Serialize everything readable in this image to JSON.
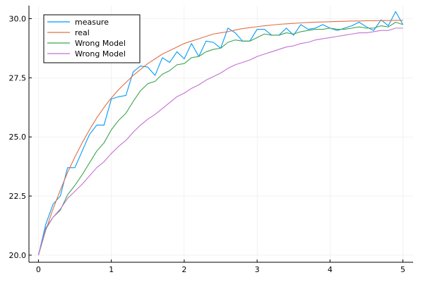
{
  "chart_data": {
    "type": "line",
    "title": "",
    "xlabel": "",
    "ylabel": "",
    "xlim": [
      -0.13,
      5.14
    ],
    "ylim": [
      19.7,
      30.55
    ],
    "xticks": [
      0,
      1,
      2,
      3,
      4,
      5
    ],
    "xtick_labels": [
      "0",
      "1",
      "2",
      "3",
      "4",
      "5"
    ],
    "yticks": [
      20.0,
      22.5,
      25.0,
      27.5,
      30.0
    ],
    "ytick_labels": [
      "20.0",
      "22.5",
      "25.0",
      "27.5",
      "30.0"
    ],
    "grid": true,
    "legend_position": "top-left",
    "x": [
      0.0,
      0.1,
      0.2,
      0.3,
      0.4,
      0.5,
      0.6,
      0.7,
      0.8,
      0.9,
      1.0,
      1.1,
      1.2,
      1.3,
      1.4,
      1.5,
      1.6,
      1.7,
      1.8,
      1.9,
      2.0,
      2.1,
      2.2,
      2.3,
      2.4,
      2.5,
      2.6,
      2.7,
      2.8,
      2.9,
      3.0,
      3.1,
      3.2,
      3.3,
      3.4,
      3.5,
      3.6,
      3.7,
      3.8,
      3.9,
      4.0,
      4.1,
      4.2,
      4.3,
      4.4,
      4.5,
      4.6,
      4.7,
      4.8,
      4.9,
      5.0
    ],
    "series": [
      {
        "name": "measure",
        "color": "#009af9",
        "values": [
          20.0,
          21.3,
          22.15,
          22.5,
          23.7,
          23.7,
          24.4,
          25.1,
          25.5,
          25.5,
          26.6,
          26.7,
          26.75,
          27.75,
          28.0,
          27.95,
          27.6,
          28.35,
          28.15,
          28.6,
          28.3,
          28.95,
          28.4,
          29.05,
          29.0,
          28.75,
          29.6,
          29.4,
          29.05,
          29.05,
          29.55,
          29.55,
          29.3,
          29.3,
          29.6,
          29.3,
          29.75,
          29.55,
          29.6,
          29.75,
          29.6,
          29.5,
          29.6,
          29.7,
          29.85,
          29.65,
          29.5,
          29.95,
          29.7,
          30.3,
          29.75
        ]
      },
      {
        "name": "real",
        "color": "#e26f46",
        "values": [
          20.0,
          21.05,
          21.95,
          22.75,
          23.5,
          24.15,
          24.75,
          25.3,
          25.8,
          26.25,
          26.65,
          27.0,
          27.3,
          27.6,
          27.85,
          28.1,
          28.3,
          28.5,
          28.65,
          28.8,
          28.95,
          29.05,
          29.15,
          29.25,
          29.35,
          29.4,
          29.45,
          29.52,
          29.58,
          29.62,
          29.66,
          29.7,
          29.73,
          29.76,
          29.78,
          29.8,
          29.82,
          29.84,
          29.85,
          29.86,
          29.87,
          29.88,
          29.89,
          29.9,
          29.9,
          29.91,
          29.91,
          29.92,
          29.92,
          29.93,
          29.93
        ]
      },
      {
        "name": "Wrong Model",
        "color": "#3da44d",
        "values": [
          20.0,
          21.1,
          21.6,
          21.9,
          22.55,
          22.95,
          23.4,
          23.9,
          24.4,
          24.75,
          25.3,
          25.7,
          26.0,
          26.5,
          26.95,
          27.25,
          27.35,
          27.65,
          27.8,
          28.05,
          28.1,
          28.35,
          28.4,
          28.6,
          28.7,
          28.75,
          29.0,
          29.1,
          29.05,
          29.05,
          29.2,
          29.35,
          29.3,
          29.3,
          29.4,
          29.35,
          29.45,
          29.5,
          29.55,
          29.55,
          29.6,
          29.55,
          29.55,
          29.6,
          29.65,
          29.6,
          29.6,
          29.7,
          29.65,
          29.85,
          29.75
        ]
      },
      {
        "name": "Wrong Model",
        "color": "#c271d2",
        "values": [
          20.0,
          21.15,
          21.6,
          21.95,
          22.4,
          22.7,
          23.0,
          23.35,
          23.7,
          23.95,
          24.3,
          24.6,
          24.85,
          25.2,
          25.5,
          25.75,
          25.95,
          26.2,
          26.45,
          26.7,
          26.85,
          27.05,
          27.2,
          27.4,
          27.55,
          27.7,
          27.9,
          28.05,
          28.15,
          28.25,
          28.4,
          28.5,
          28.6,
          28.7,
          28.8,
          28.85,
          28.95,
          29.0,
          29.1,
          29.15,
          29.2,
          29.25,
          29.3,
          29.35,
          29.4,
          29.4,
          29.45,
          29.5,
          29.5,
          29.6,
          29.6
        ]
      }
    ]
  }
}
